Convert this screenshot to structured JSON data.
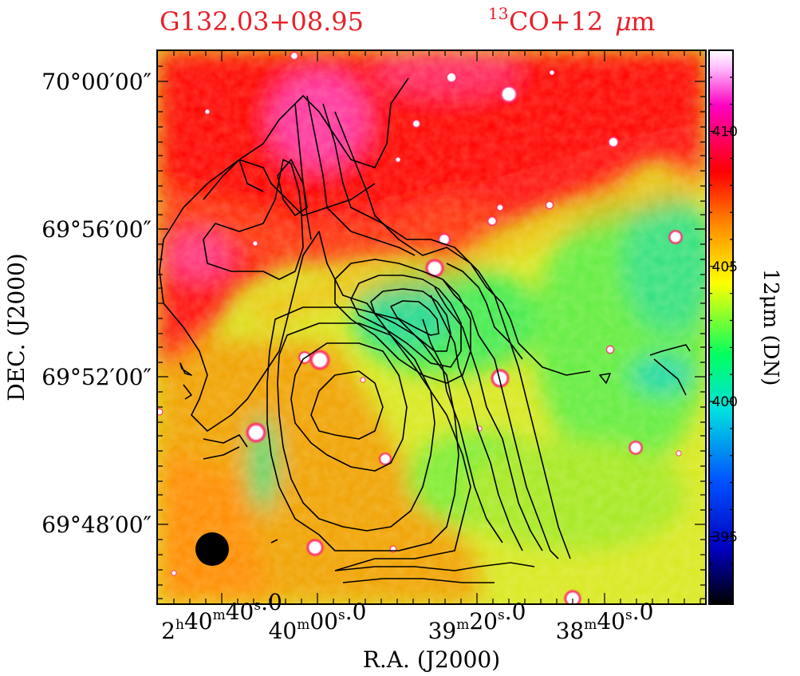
{
  "chart_data": {
    "type": "heatmap",
    "title_left": "G132.03+08.95",
    "title_right_sup": "13",
    "title_right_main": "CO+12",
    "title_right_mu": "μ",
    "title_right_unit": "m",
    "xlabel": "R.A.  (J2000)",
    "ylabel": "DEC.  (J2000)",
    "colorbar_label": "12μm (DN)",
    "colorbar_range": [
      392.5,
      413.0
    ],
    "colorbar_ticks": [
      395,
      400,
      405,
      410
    ],
    "x_ticks": [
      {
        "h": "2",
        "hu": "h",
        "m": "40",
        "mu": "m",
        "s": "40",
        "su": "s",
        "f": "0"
      },
      {
        "h": "",
        "hu": "",
        "m": "40",
        "mu": "m",
        "s": "00",
        "su": "s",
        "f": "0"
      },
      {
        "h": "",
        "hu": "",
        "m": "39",
        "mu": "m",
        "s": "20",
        "su": "s",
        "f": "0"
      },
      {
        "h": "",
        "hu": "",
        "m": "38",
        "mu": "m",
        "s": "40",
        "su": "s",
        "f": "0"
      }
    ],
    "y_ticks": [
      "70°00′00″",
      "69°56′00″",
      "69°52′00″",
      "69°48′00″"
    ],
    "colormap": [
      "#000000",
      "#0000ff",
      "#00e5ff",
      "#00ff80",
      "#ffff00",
      "#ff8000",
      "#ff0000",
      "#ff00ff",
      "#ffffff"
    ],
    "contour_color": "#000000",
    "beam": "filled circle, bottom-left"
  }
}
